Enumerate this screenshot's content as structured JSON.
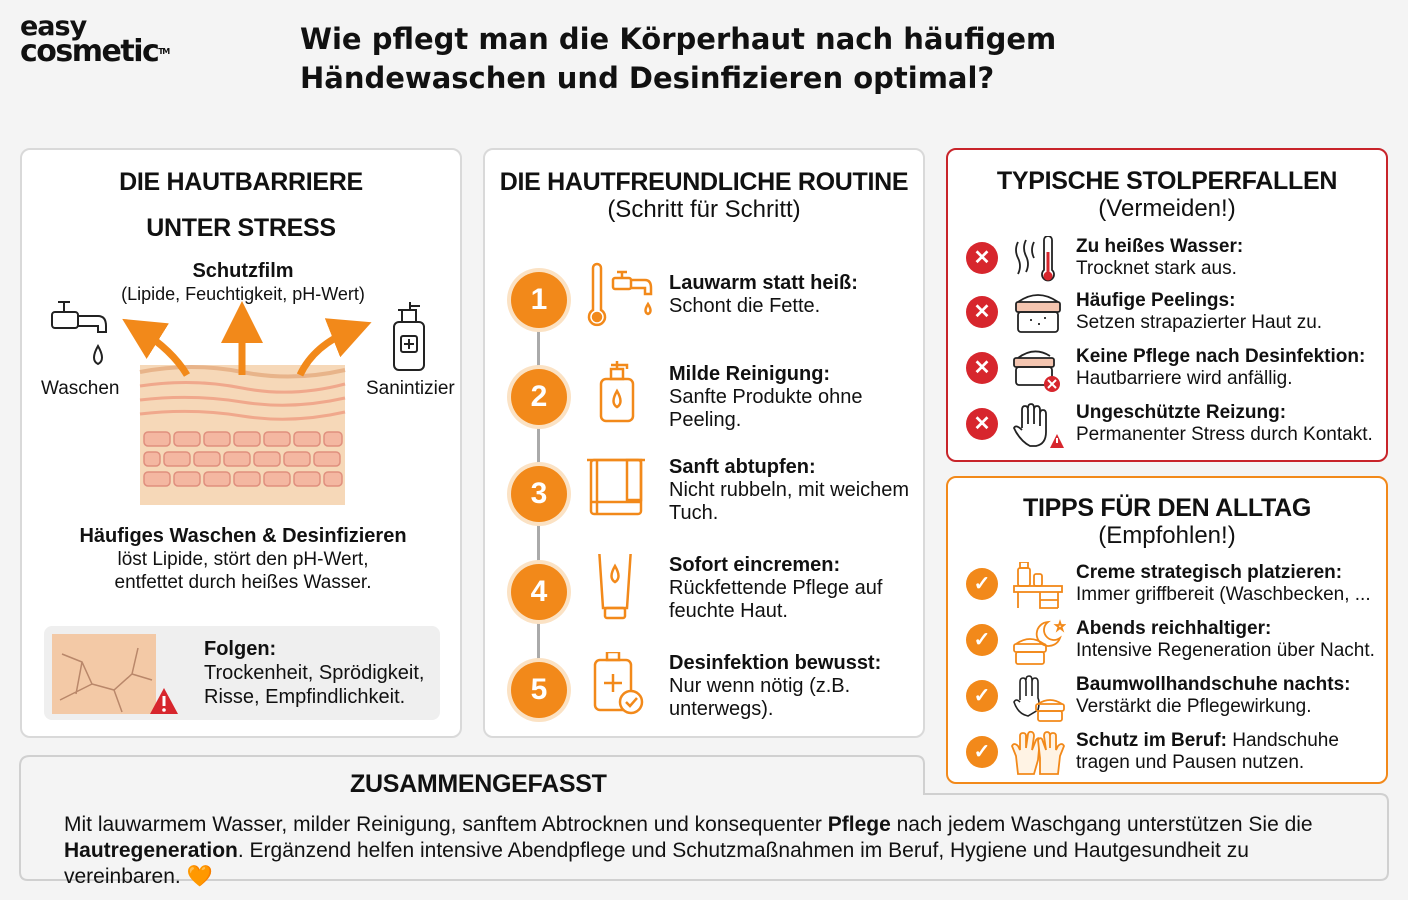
{
  "brand": {
    "line1": "easy",
    "line2": "cosmetic",
    "tm": "TM"
  },
  "title": "Wie pflegt man die Körperhaut nach häufigem Händewaschen und Desinfizieren optimal?",
  "barrier": {
    "title_line1": "DIE HAUTBARRIERE",
    "title_line2": "UNTER STRESS",
    "film_title": "Schutzfilm",
    "film_sub": "(Lipide, Feuchtigkeit, pH-Wert)",
    "left_label": "Waschen",
    "right_label": "Sanintizier",
    "stress_title": "Häufiges Waschen & Desinfizieren",
    "stress_body": "löst Lipide, stört den pH-Wert, entfettet durch heißes Wasser.",
    "consequence_title": "Folgen:",
    "consequence_body": "Trockenheit, Sprödigkeit, Risse, Empfindlichkeit."
  },
  "routine": {
    "title": "DIE HAUTFREUNDLICHE ROUTINE",
    "subtitle": "(Schritt für Schritt)",
    "steps": [
      {
        "num": "1",
        "icon": "thermometer-faucet-icon",
        "title": "Lauwarm statt heiß:",
        "body": "Schont die Fette."
      },
      {
        "num": "2",
        "icon": "soap-dispenser-icon",
        "title": "Milde Reinigung:",
        "body": "Sanfte Produkte ohne Peeling."
      },
      {
        "num": "3",
        "icon": "towel-icon",
        "title": "Sanft abtupfen:",
        "body": "Nicht rubbeln, mit weichem Tuch."
      },
      {
        "num": "4",
        "icon": "cream-tube-icon",
        "title": "Sofort eincremen:",
        "body": "Rückfettende Pflege auf feuchte Haut."
      },
      {
        "num": "5",
        "icon": "sanitizer-check-icon",
        "title": "Desinfektion bewusst:",
        "body": "Nur wenn nötig (z.B. unterwegs)."
      }
    ]
  },
  "pitfalls": {
    "title": "TYPISCHE STOLPERFALLEN",
    "subtitle": "(Vermeiden!)",
    "items": [
      {
        "icon": "hot-water-icon",
        "title": "Zu heißes Wasser:",
        "body": "Trocknet stark aus."
      },
      {
        "icon": "scrub-jar-icon",
        "title": "Häufige Peelings:",
        "body": "Setzen strapazierter Haut zu."
      },
      {
        "icon": "cream-jar-cross-icon",
        "title": "Keine Pflege nach Desinfektion:",
        "body": "Hautbarriere wird anfällig."
      },
      {
        "icon": "hand-warning-icon",
        "title": "Ungeschützte Reizung:",
        "body": "Permanenter Stress durch Kontakt."
      }
    ]
  },
  "tips": {
    "title": "TIPPS FÜR DEN ALLTAG",
    "subtitle": "(Empfohlen!)",
    "items": [
      {
        "icon": "washbasin-cream-icon",
        "title": "Creme strategisch platzieren:",
        "body": "Immer griffbereit (Waschbecken, ..."
      },
      {
        "icon": "night-cream-icon",
        "title": "Abends reichhaltiger:",
        "body": "Intensive Regeneration über Nacht."
      },
      {
        "icon": "cotton-glove-icon",
        "title": "Baumwollhandschuhe nachts:",
        "body": "Verstärkt die Pflegewirkung."
      },
      {
        "icon": "work-gloves-icon",
        "title": "Schutz im Beruf:",
        "title_rest": " Handschuhe",
        "body": "tragen und Pausen nutzen."
      }
    ]
  },
  "summary": {
    "title": "ZUSAMMENGEFASST",
    "p1": "Mit lauwarmem Wasser, milder Reinigung, sanftem Abtrocknen und konsequenter ",
    "b1": "Pflege",
    "p2": " nach jedem Waschgang unterstützen Sie die ",
    "b2": "Hautregeneration",
    "p3": ". Ergänzend helfen intensive Abendpflege und Schutzmaßnahmen im Beruf, Hygiene und Hautgesundheit zu vereinbaren. ",
    "heart": "🧡"
  },
  "colors": {
    "orange": "#f2891a",
    "red": "#d7262d",
    "skin": "#f6cfa8"
  }
}
